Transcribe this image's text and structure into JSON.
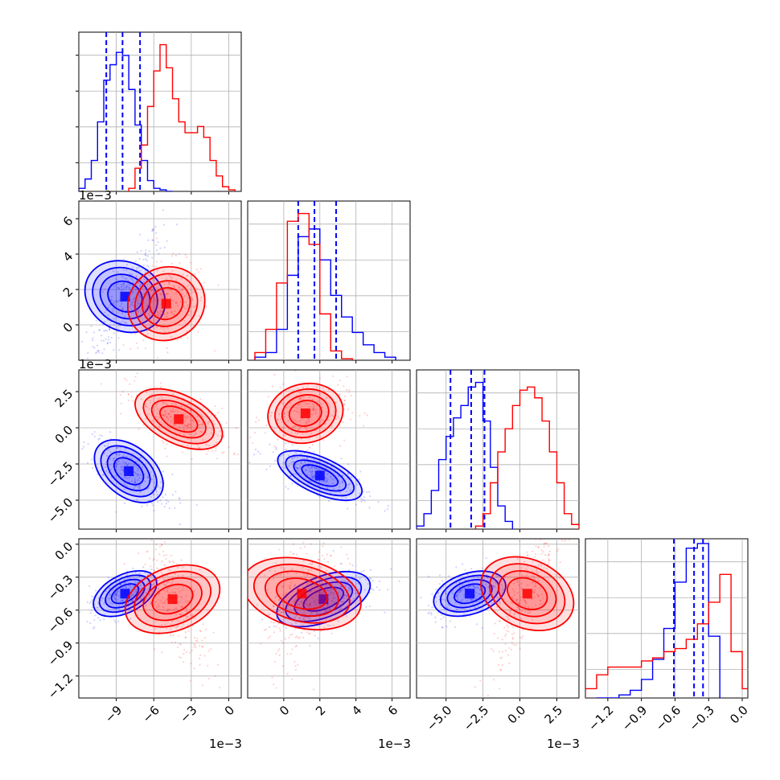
{
  "colors": {
    "blue": "#0000ff",
    "red": "#ff0000",
    "grid": "#b0b0b0"
  },
  "chart_data": {
    "type": "corner",
    "grid": true,
    "parameters": [
      {
        "range": [
          -12.0,
          1.0
        ],
        "ticks": [
          -9,
          -6,
          -3,
          0
        ],
        "tick_labels": [
          "−9",
          "−6",
          "−3",
          "0"
        ],
        "offset": "1e−3"
      },
      {
        "range": [
          -2.0,
          7.0
        ],
        "ticks": [
          0,
          2,
          4,
          6
        ],
        "tick_labels": [
          "0",
          "2",
          "4",
          "6"
        ],
        "offset": "1e−3"
      },
      {
        "range": [
          -7.0,
          4.0
        ],
        "ticks": [
          -5.0,
          -2.5,
          0.0,
          2.5
        ],
        "tick_labels": [
          "−5.0",
          "−2.5",
          "0.0",
          "2.5"
        ],
        "offset": "1e−3"
      },
      {
        "range": [
          -1.4,
          0.05
        ],
        "ticks": [
          -1.2,
          -0.9,
          -0.6,
          -0.3,
          0.0
        ],
        "tick_labels": [
          "−1.2",
          "−0.9",
          "−0.6",
          "−0.3",
          "0.0"
        ],
        "offset": ""
      }
    ],
    "series": [
      {
        "color": "#0000ff",
        "quantiles": [
          [
            -9.8,
            -8.5,
            -7.1
          ],
          [
            0.8,
            1.7,
            2.9
          ],
          [
            -4.7,
            -3.3,
            -2.4
          ],
          [
            -0.61,
            -0.43,
            -0.35
          ]
        ],
        "histograms": [
          {
            "edges": [
              -12.0,
              -11.5,
              -11.0,
              -10.5,
              -10.0,
              -9.5,
              -9.0,
              -8.5,
              -8.0,
              -7.5,
              -7.0,
              -6.5,
              -6.0,
              -5.5,
              -5.0,
              -4.5
            ],
            "counts": [
              0.02,
              0.08,
              0.2,
              0.45,
              0.72,
              0.82,
              0.9,
              0.88,
              0.66,
              0.43,
              0.2,
              0.07,
              0.02,
              0.01,
              0.0
            ]
          },
          {
            "edges": [
              -1.6,
              -1.0,
              -0.4,
              0.2,
              0.8,
              1.4,
              2.0,
              2.6,
              3.2,
              3.8,
              4.4,
              5.0,
              5.6,
              6.2
            ],
            "counts": [
              0.02,
              0.05,
              0.2,
              0.55,
              0.8,
              0.85,
              0.65,
              0.42,
              0.28,
              0.18,
              0.1,
              0.05,
              0.02
            ]
          },
          {
            "edges": [
              -7.0,
              -6.5,
              -6.0,
              -5.5,
              -5.0,
              -4.5,
              -4.0,
              -3.5,
              -3.0,
              -2.5,
              -2.0,
              -1.5,
              -1.0,
              -0.5
            ],
            "counts": [
              0.02,
              0.1,
              0.25,
              0.45,
              0.6,
              0.72,
              0.8,
              0.92,
              0.95,
              0.7,
              0.4,
              0.15,
              0.05
            ]
          },
          {
            "edges": [
              -1.3,
              -1.2,
              -1.1,
              -1.0,
              -0.9,
              -0.8,
              -0.7,
              -0.6,
              -0.5,
              -0.4,
              -0.3,
              -0.2
            ],
            "counts": [
              0.0,
              0.0,
              0.02,
              0.05,
              0.12,
              0.25,
              0.45,
              0.75,
              0.97,
              1.0,
              0.4
            ]
          }
        ],
        "density_levels": 4,
        "pairs": [
          {
            "row": 1,
            "col": 0,
            "center": [
              -8.3,
              1.6
            ],
            "sd": [
              1.3,
              1.6
            ],
            "rho": 0.85
          },
          {
            "row": 2,
            "col": 0,
            "center": [
              -8.0,
              -3.0
            ],
            "sd": [
              1.5,
              1.1
            ],
            "rho": -0.75
          },
          {
            "row": 2,
            "col": 1,
            "center": [
              2.0,
              -3.3
            ],
            "sd": [
              1.2,
              0.8
            ],
            "rho": -0.75
          },
          {
            "row": 3,
            "col": 0,
            "center": [
              -8.3,
              -0.45
            ],
            "sd": [
              1.3,
              0.1
            ],
            "rho": 0.55
          },
          {
            "row": 3,
            "col": 1,
            "center": [
              2.2,
              -0.5
            ],
            "sd": [
              1.3,
              0.12
            ],
            "rho": 0.55
          },
          {
            "row": 3,
            "col": 2,
            "center": [
              -3.4,
              -0.45
            ],
            "sd": [
              1.2,
              0.1
            ],
            "rho": 0.35
          }
        ]
      },
      {
        "color": "#ff0000",
        "quantiles": [],
        "histograms": [
          {
            "edges": [
              -8.0,
              -7.5,
              -7.0,
              -6.5,
              -6.0,
              -5.5,
              -5.0,
              -4.5,
              -4.0,
              -3.5,
              -3.0,
              -2.5,
              -2.0,
              -1.5,
              -1.0,
              -0.5,
              0.0,
              0.5
            ],
            "counts": [
              0.02,
              0.15,
              0.3,
              0.55,
              0.78,
              0.95,
              0.8,
              0.6,
              0.45,
              0.38,
              0.38,
              0.42,
              0.35,
              0.2,
              0.1,
              0.03,
              0.01
            ]
          },
          {
            "edges": [
              -1.6,
              -1.0,
              -0.4,
              0.2,
              0.8,
              1.4,
              2.0,
              2.6,
              3.2,
              3.8
            ],
            "counts": [
              0.05,
              0.2,
              0.5,
              0.9,
              0.95,
              0.75,
              0.3,
              0.06,
              0.01
            ]
          },
          {
            "edges": [
              -3.0,
              -2.5,
              -2.0,
              -1.5,
              -1.0,
              -0.5,
              0.0,
              0.5,
              1.0,
              1.5,
              2.0,
              2.5,
              3.0,
              3.5,
              4.0
            ],
            "counts": [
              0.02,
              0.1,
              0.3,
              0.5,
              0.65,
              0.8,
              0.9,
              0.92,
              0.85,
              0.7,
              0.5,
              0.3,
              0.1,
              0.03
            ]
          },
          {
            "edges": [
              -1.4,
              -1.3,
              -1.2,
              -1.1,
              -1.0,
              -0.9,
              -0.8,
              -0.7,
              -0.6,
              -0.5,
              -0.4,
              -0.3,
              -0.2,
              -0.1,
              0.0,
              0.05
            ],
            "counts": [
              0.06,
              0.15,
              0.2,
              0.2,
              0.2,
              0.24,
              0.26,
              0.3,
              0.32,
              0.38,
              0.48,
              0.62,
              0.8,
              0.3,
              0.06
            ]
          }
        ],
        "density_levels": 4,
        "pairs": [
          {
            "row": 1,
            "col": 0,
            "center": [
              -5.0,
              1.2
            ],
            "sd": [
              1.5,
              1.0
            ],
            "rho": 0.1
          },
          {
            "row": 2,
            "col": 0,
            "center": [
              -4.0,
              0.6
            ],
            "sd": [
              1.8,
              1.0
            ],
            "rho": -0.6
          },
          {
            "row": 2,
            "col": 1,
            "center": [
              1.2,
              1.0
            ],
            "sd": [
              1.0,
              1.0
            ],
            "rho": 0.1
          },
          {
            "row": 3,
            "col": 0,
            "center": [
              -4.5,
              -0.5
            ],
            "sd": [
              1.2,
              0.28
            ],
            "rho": -0.7
          },
          {
            "row": 3,
            "col": 1,
            "center": [
              1.0,
              -0.45
            ],
            "sd": [
              0.9,
              0.3
            ],
            "rho": 0.4
          },
          {
            "row": 3,
            "col": 2,
            "center": [
              0.5,
              -0.45
            ],
            "sd": [
              1.1,
              0.3
            ],
            "rho": 0.85
          }
        ]
      }
    ]
  }
}
